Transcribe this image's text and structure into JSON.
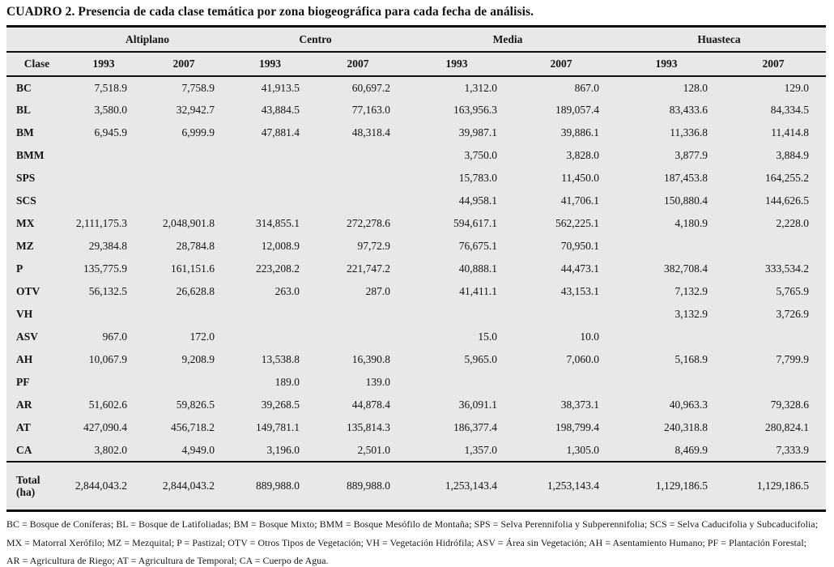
{
  "title": "CUADRO 2. Presencia de cada clase temática por zona biogeográfica para cada fecha de análisis.",
  "table": {
    "clase_header": "Clase",
    "groups": [
      "Altiplano",
      "Centro",
      "Media",
      "Huasteca"
    ],
    "year_headers": [
      "1993",
      "2007",
      "1993",
      "2007",
      "1993",
      "2007",
      "1993",
      "2007"
    ],
    "rows": [
      {
        "clase": "BC",
        "values": [
          "7,518.9",
          "7,758.9",
          "41,913.5",
          "60,697.2",
          "1,312.0",
          "867.0",
          "128.0",
          "129.0"
        ]
      },
      {
        "clase": "BL",
        "values": [
          "3,580.0",
          "32,942.7",
          "43,884.5",
          "77,163.0",
          "163,956.3",
          "189,057.4",
          "83,433.6",
          "84,334.5"
        ]
      },
      {
        "clase": "BM",
        "values": [
          "6,945.9",
          "6,999.9",
          "47,881.4",
          "48,318.4",
          "39,987.1",
          "39,886.1",
          "11,336.8",
          "11,414.8"
        ]
      },
      {
        "clase": "BMM",
        "values": [
          "",
          "",
          "",
          "",
          "3,750.0",
          "3,828.0",
          "3,877.9",
          "3,884.9"
        ]
      },
      {
        "clase": "SPS",
        "values": [
          "",
          "",
          "",
          "",
          "15,783.0",
          "11,450.0",
          "187,453.8",
          "164,255.2"
        ]
      },
      {
        "clase": "SCS",
        "values": [
          "",
          "",
          "",
          "",
          "44,958.1",
          "41,706.1",
          "150,880.4",
          "144,626.5"
        ]
      },
      {
        "clase": "MX",
        "values": [
          "2,111,175.3",
          "2,048,901.8",
          "314,855.1",
          "272,278.6",
          "594,617.1",
          "562,225.1",
          "4,180.9",
          "2,228.0"
        ]
      },
      {
        "clase": "MZ",
        "values": [
          "29,384.8",
          "28,784.8",
          "12,008.9",
          "97,72.9",
          "76,675.1",
          "70,950.1",
          "",
          ""
        ]
      },
      {
        "clase": "P",
        "values": [
          "135,775.9",
          "161,151.6",
          "223,208.2",
          "221,747.2",
          "40,888.1",
          "44,473.1",
          "382,708.4",
          "333,534.2"
        ]
      },
      {
        "clase": "OTV",
        "values": [
          "56,132.5",
          "26,628.8",
          "263.0",
          "287.0",
          "41,411.1",
          "43,153.1",
          "7,132.9",
          "5,765.9"
        ]
      },
      {
        "clase": "VH",
        "values": [
          "",
          "",
          "",
          "",
          "",
          "",
          "3,132.9",
          "3,726.9"
        ]
      },
      {
        "clase": "ASV",
        "values": [
          "967.0",
          "172.0",
          "",
          "",
          "15.0",
          "10.0",
          "",
          ""
        ]
      },
      {
        "clase": "AH",
        "values": [
          "10,067.9",
          "9,208.9",
          "13,538.8",
          "16,390.8",
          "5,965.0",
          "7,060.0",
          "5,168.9",
          "7,799.9"
        ]
      },
      {
        "clase": "PF",
        "values": [
          "",
          "",
          "189.0",
          "139.0",
          "",
          "",
          "",
          ""
        ]
      },
      {
        "clase": "AR",
        "values": [
          "51,602.6",
          "59,826.5",
          "39,268.5",
          "44,878.4",
          "36,091.1",
          "38,373.1",
          "40,963.3",
          "79,328.6"
        ]
      },
      {
        "clase": "AT",
        "values": [
          "427,090.4",
          "456,718.2",
          "149,781.1",
          "135,814.3",
          "186,377.4",
          "198,799.4",
          "240,318.8",
          "280,824.1"
        ]
      },
      {
        "clase": "CA",
        "values": [
          "3,802.0",
          "4,949.0",
          "3,196.0",
          "2,501.0",
          "1,357.0",
          "1,305.0",
          "8,469.9",
          "7,333.9"
        ]
      }
    ],
    "total": {
      "label": "Total\n(ha)",
      "values": [
        "2,844,043.2",
        "2,844,043.2",
        "889,988.0",
        "889,988.0",
        "1,253,143.4",
        "1,253,143.4",
        "1,129,186.5",
        "1,129,186.5"
      ]
    }
  },
  "footnotes": [
    "BC = Bosque de Coníferas; BL = Bosque de Latifoliadas; BM = Bosque Mixto; BMM = Bosque Mesófilo de Montaña; SPS = Selva Perennifolia y Subperennifolia; SCS = Selva Caducifolia y Subcaducifolia;",
    "MX = Matorral Xerófilo; MZ = Mezquital; P = Pastizal; OTV = Otros Tipos de Vegetación; VH = Vegetación Hidrófila; ASV = Área sin Vegetación; AH = Asentamiento Humano; PF = Plantación Forestal;",
    "AR = Agricultura de Riego; AT = Agricultura de Temporal; CA = Cuerpo de Agua."
  ],
  "colors": {
    "table_background": "#e8e8e8",
    "rule_color": "#0f0f0f",
    "text_color": "#141414"
  }
}
